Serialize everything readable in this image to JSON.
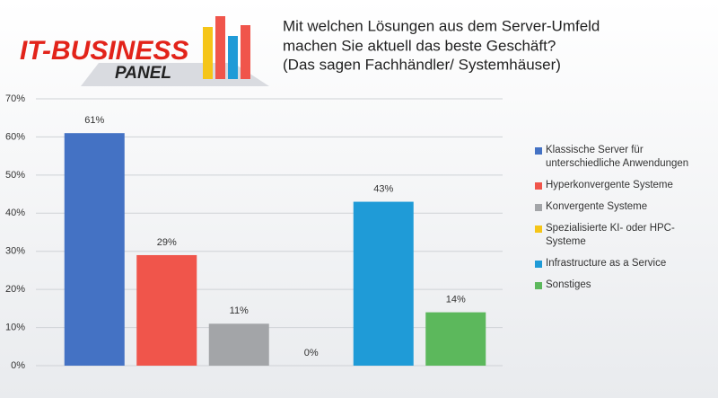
{
  "logo": {
    "line1": "IT-BUSINESS",
    "line2": "PANEL"
  },
  "chart_data": {
    "type": "bar",
    "title": [
      "Mit welchen Lösungen aus dem Server-Umfeld",
      "machen Sie aktuell das beste Geschäft?",
      "(Das sagen Fachhändler/ Systemhäuser)"
    ],
    "ylim": [
      0,
      70
    ],
    "yticks": [
      {
        "value": 0,
        "label": "0%"
      },
      {
        "value": 10,
        "label": "10%"
      },
      {
        "value": 20,
        "label": "20%"
      },
      {
        "value": 30,
        "label": "30%"
      },
      {
        "value": 40,
        "label": "40%"
      },
      {
        "value": 50,
        "label": "50%"
      },
      {
        "value": 60,
        "label": "60%"
      },
      {
        "value": 70,
        "label": "70%"
      }
    ],
    "grid": true,
    "series": [
      {
        "name": "Klassische Server für unterschiedliche Anwendungen",
        "color": "#4472c4",
        "values": [
          61
        ],
        "value_labels": [
          "61%"
        ]
      },
      {
        "name": "Hyperkonvergente Systeme",
        "color": "#f0554b",
        "values": [
          29
        ],
        "value_labels": [
          "29%"
        ]
      },
      {
        "name": "Konvergente Systeme",
        "color": "#a3a5a8",
        "values": [
          11
        ],
        "value_labels": [
          "11%"
        ]
      },
      {
        "name": "Spezialisierte KI- oder HPC-Systeme",
        "color": "#f5c518",
        "values": [
          0
        ],
        "value_labels": [
          "0%"
        ]
      },
      {
        "name": "Infrastructure as a Service",
        "color": "#1f9bd7",
        "values": [
          43
        ],
        "value_labels": [
          "43%"
        ]
      },
      {
        "name": "Sonstiges",
        "color": "#5cb85c",
        "values": [
          14
        ],
        "value_labels": [
          "14%"
        ]
      }
    ]
  }
}
